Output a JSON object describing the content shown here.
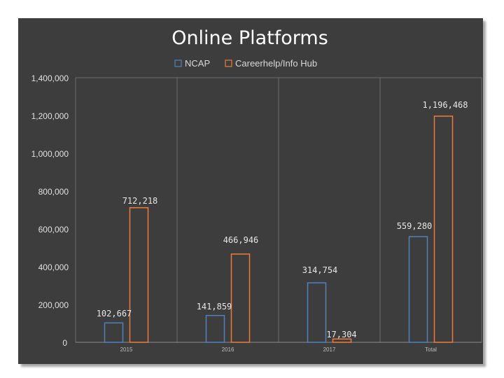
{
  "chart_data": {
    "type": "bar",
    "title": "Online Platforms",
    "categories": [
      "2015",
      "2016",
      "2017",
      "Total"
    ],
    "series": [
      {
        "name": "NCAP",
        "values": [
          102667,
          141859,
          314754,
          559280
        ],
        "labels": [
          "102,667",
          "141,859",
          "314,754",
          "559,280"
        ],
        "color": "#4f81bd"
      },
      {
        "name": "Careerhelp/Info Hub",
        "values": [
          712218,
          466946,
          17304,
          1196468
        ],
        "labels": [
          "712,218",
          "466,946",
          "17,304",
          "1,196,468"
        ],
        "color": "#f07b39"
      }
    ],
    "ylim": [
      0,
      1400000
    ],
    "yticks": [
      0,
      200000,
      400000,
      600000,
      800000,
      1000000,
      1200000,
      1400000
    ],
    "ytick_labels": [
      "0",
      "200,000",
      "400,000",
      "600,000",
      "800,000",
      "1,000,000",
      "1,200,000",
      "1,400,000"
    ],
    "grid": "vertical",
    "legend_position": "top",
    "background": "#3d3d3d",
    "gridline_color": "#6a6a6a"
  }
}
